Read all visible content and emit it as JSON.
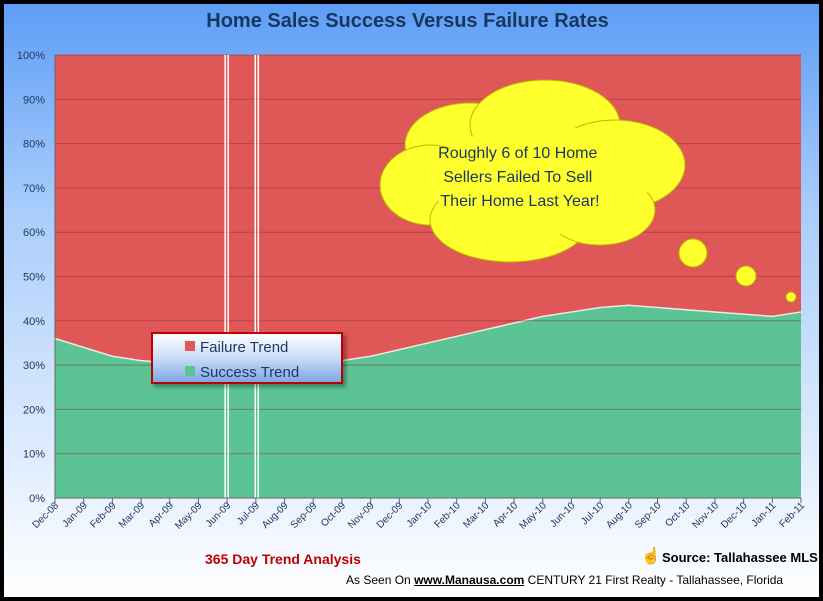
{
  "chart_data": {
    "type": "area",
    "title": "Home Sales Success Versus Failure Rates",
    "subtitle": "365 Day Trend Analysis",
    "source": "Source: Tallahassee MLS",
    "footer": {
      "prefix": "As Seen On",
      "url": "www.Manausa.com",
      "suffix": "CENTURY 21 First Realty - Tallahassee, Florida"
    },
    "categories": [
      "Dec-08",
      "Jan-09",
      "Feb-09",
      "Mar-09",
      "Apr-09",
      "May-09",
      "Jun-09",
      "Jul-09",
      "Aug-09",
      "Sep-09",
      "Oct-09",
      "Nov-09",
      "Dec-09",
      "Jan-10",
      "Feb-10",
      "Mar-10",
      "Apr-10",
      "May-10",
      "Jun-10",
      "Jul-10",
      "Aug-10",
      "Sep-10",
      "Oct-10",
      "Nov-10",
      "Dec-10",
      "Jan-11",
      "Feb-11"
    ],
    "ylim": [
      0,
      100
    ],
    "yticks": [
      "0%",
      "10%",
      "20%",
      "30%",
      "40%",
      "50%",
      "60%",
      "70%",
      "80%",
      "90%",
      "100%"
    ],
    "series": [
      {
        "name": "Failure Trend",
        "color": "#e05757",
        "values": [
          64,
          66,
          68,
          69,
          69.5,
          69.5,
          69.5,
          69.5,
          69.5,
          69.5,
          69,
          68,
          66.5,
          65,
          63.5,
          62,
          60.5,
          59,
          58,
          57,
          56.5,
          57,
          57.5,
          58,
          58.5,
          59,
          58
        ]
      },
      {
        "name": "Success Trend",
        "color": "#5cc494",
        "values": [
          36,
          34,
          32,
          31,
          30.5,
          30.5,
          30.5,
          30.5,
          30.5,
          30.5,
          31,
          32,
          33.5,
          35,
          36.5,
          38,
          39.5,
          41,
          42,
          43,
          43.5,
          43,
          42.5,
          42,
          41.5,
          41,
          42
        ]
      }
    ],
    "legend": "center-left",
    "grid": true,
    "callout": "Roughly 6 of 10 Home Sellers Failed To Sell Their Home Last Year!"
  }
}
